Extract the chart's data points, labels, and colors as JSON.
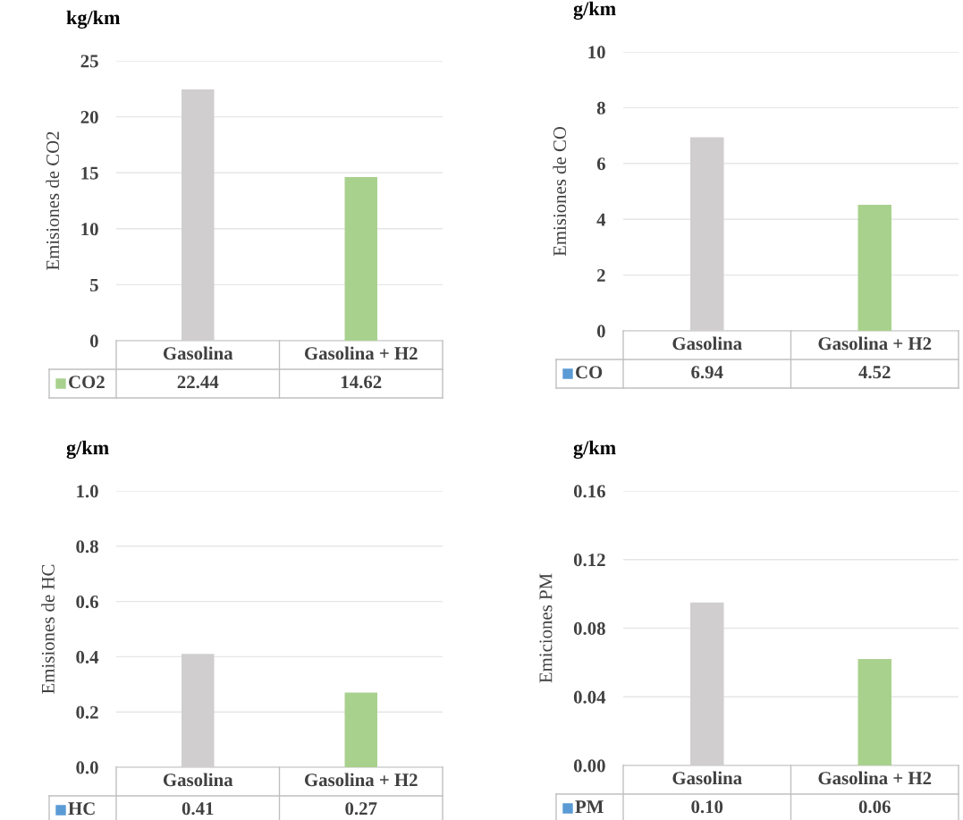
{
  "chart_data": [
    {
      "type": "bar",
      "title": "kg/km",
      "ylabel": "Emisiones de CO2",
      "categories": [
        "Gasolina",
        "Gasolina + H2"
      ],
      "series": [
        {
          "name": "CO2",
          "color": "#a9d18e",
          "colors": [
            "#d0cece",
            "#a9d18e"
          ],
          "values": [
            22.44,
            14.62
          ]
        }
      ],
      "ylim": [
        0,
        25
      ],
      "yticks": [
        0,
        5,
        10,
        15,
        20,
        25
      ],
      "grid": "y",
      "data_labels": true
    },
    {
      "type": "bar",
      "title": "g/km",
      "ylabel": "Emisiones de CO",
      "categories": [
        "Gasolina",
        "Gasolina + H2"
      ],
      "series": [
        {
          "name": "CO",
          "color": "#5b9bd5",
          "colors": [
            "#d0cece",
            "#a9d18e"
          ],
          "values": [
            6.94,
            4.52
          ]
        }
      ],
      "ylim": [
        0,
        10
      ],
      "yticks": [
        0,
        2,
        4,
        6,
        8,
        10
      ],
      "grid": "y",
      "data_labels": true
    },
    {
      "type": "bar",
      "title": "g/km",
      "ylabel": "Emisiones de HC",
      "categories": [
        "Gasolina",
        "Gasolina + H2"
      ],
      "series": [
        {
          "name": "HC",
          "color": "#5b9bd5",
          "colors": [
            "#d0cece",
            "#a9d18e"
          ],
          "values": [
            0.41,
            0.27
          ]
        }
      ],
      "ylim": [
        0,
        1.0
      ],
      "yticks": [
        {
          "value": 0,
          "label": "0.0"
        },
        {
          "value": 0.2,
          "label": "0.2"
        },
        {
          "value": 0.4,
          "label": "0.4"
        },
        {
          "value": 0.6,
          "label": "0.6"
        },
        {
          "value": 0.8,
          "label": "0.8"
        },
        {
          "value": 1.0,
          "label": "1.0"
        }
      ],
      "grid": "y",
      "data_labels": true
    },
    {
      "type": "bar",
      "title": "g/km",
      "ylabel": "Emiciones PM",
      "categories": [
        "Gasolina",
        "Gasolina + H2"
      ],
      "series": [
        {
          "name": "PM",
          "color": "#5b9bd5",
          "colors": [
            "#d0cece",
            "#a9d18e"
          ],
          "values": [
            0.095,
            0.062
          ],
          "value_labels": [
            "0.10",
            "0.06"
          ]
        }
      ],
      "ylim": [
        0,
        0.16
      ],
      "yticks": [
        {
          "value": 0,
          "label": "0.00"
        },
        {
          "value": 0.04,
          "label": "0.04"
        },
        {
          "value": 0.08,
          "label": "0.08"
        },
        {
          "value": 0.12,
          "label": "0.12"
        },
        {
          "value": 0.16,
          "label": "0.16"
        }
      ],
      "grid": "y",
      "data_labels": true
    }
  ]
}
